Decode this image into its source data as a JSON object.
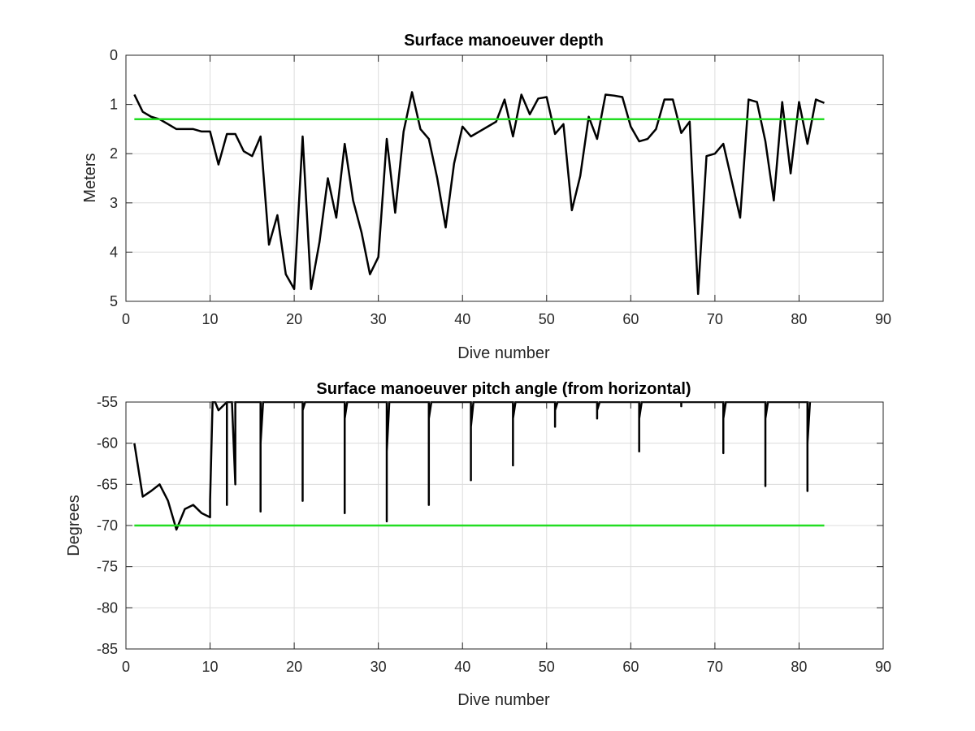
{
  "chart_data": [
    {
      "type": "line",
      "title": "Surface manoeuver depth",
      "xlabel": "Dive number",
      "ylabel": "Meters",
      "xlim": [
        0,
        90
      ],
      "ylim": [
        0,
        5
      ],
      "y_reversed": true,
      "grid": true,
      "xticks": [
        0,
        10,
        20,
        30,
        40,
        50,
        60,
        70,
        80,
        90
      ],
      "yticks": [
        0,
        1,
        2,
        3,
        4,
        5
      ],
      "series": [
        {
          "color": "#000000",
          "x": [
            1,
            2,
            3,
            4,
            5,
            6,
            7,
            8,
            9,
            10,
            11,
            12,
            13,
            14,
            15,
            16,
            17,
            18,
            19,
            20,
            21,
            22,
            23,
            24,
            25,
            26,
            27,
            28,
            29,
            30,
            31,
            32,
            33,
            34,
            35,
            36,
            37,
            38,
            39,
            40,
            41,
            42,
            43,
            44,
            45,
            46,
            47,
            48,
            49,
            50,
            51,
            52,
            53,
            54,
            55,
            56,
            57,
            58,
            59,
            60,
            61,
            62,
            63,
            64,
            65,
            66,
            67,
            68,
            69,
            70,
            71,
            72,
            73,
            74,
            75,
            76,
            77,
            78,
            79,
            80,
            81,
            82,
            83
          ],
          "y": [
            0.8,
            1.15,
            1.25,
            1.3,
            1.4,
            1.5,
            1.5,
            1.5,
            1.55,
            1.55,
            2.22,
            1.6,
            1.6,
            1.95,
            2.05,
            1.65,
            3.85,
            3.25,
            4.45,
            4.75,
            1.65,
            4.75,
            3.8,
            2.5,
            3.3,
            1.8,
            2.95,
            3.6,
            4.45,
            4.1,
            1.7,
            3.2,
            1.55,
            0.75,
            1.5,
            1.7,
            2.5,
            3.5,
            2.2,
            1.45,
            1.65,
            1.55,
            1.45,
            1.35,
            0.9,
            1.65,
            0.8,
            1.2,
            0.88,
            0.85,
            1.6,
            1.4,
            3.15,
            2.45,
            1.25,
            1.7,
            0.8,
            0.82,
            0.85,
            1.45,
            1.75,
            1.7,
            1.5,
            0.9,
            0.9,
            1.58,
            1.35,
            4.85,
            2.05,
            2.0,
            1.8,
            2.55,
            3.3,
            0.9,
            0.95,
            1.75,
            2.95,
            0.95,
            2.4,
            0.95,
            1.8,
            0.9,
            0.97
          ]
        },
        {
          "color": "#22dd22",
          "x": [
            1,
            83
          ],
          "y": [
            1.3,
            1.3
          ]
        }
      ]
    },
    {
      "type": "line",
      "title": "Surface manoeuver pitch angle (from horizontal)",
      "xlabel": "Dive number",
      "ylabel": "Degrees",
      "xlim": [
        0,
        90
      ],
      "ylim": [
        -85,
        -55
      ],
      "grid": true,
      "xticks": [
        0,
        10,
        20,
        30,
        40,
        50,
        60,
        70,
        80,
        90
      ],
      "yticks": [
        -55,
        -60,
        -65,
        -70,
        -75,
        -80,
        -85
      ],
      "series": [
        {
          "color": "#000000",
          "x": [
            1,
            2,
            3,
            4,
            5,
            6,
            7,
            8,
            9,
            10,
            10,
            10.3,
            10.6,
            11,
            12,
            12,
            12,
            12.3,
            12.6,
            13,
            13,
            13,
            15.8,
            16,
            16,
            16,
            16.3,
            20.8,
            21,
            21,
            21,
            21.3,
            25.8,
            26,
            26,
            26,
            26.3,
            30.8,
            31,
            31,
            31,
            31.3,
            35.8,
            36,
            36,
            36,
            36.3,
            40.8,
            41,
            41,
            41,
            41.3,
            45.8,
            46,
            46,
            46,
            46.3,
            50.8,
            51,
            51,
            51,
            51.3,
            55.8,
            56,
            56,
            56,
            56.3,
            60.8,
            61,
            61,
            61,
            61.3,
            65.8,
            66,
            66,
            66,
            66.3,
            70.8,
            71,
            71,
            71,
            71.3,
            75.8,
            76,
            76,
            76,
            76.3,
            80.8,
            81,
            81,
            81,
            81.3
          ],
          "y": [
            -60,
            -66.5,
            -65.8,
            -65,
            -67,
            -70.5,
            -68,
            -67.5,
            -68.5,
            -69,
            -67,
            -55,
            -55,
            -56,
            -55,
            -67.5,
            -55,
            -55,
            -55,
            -65,
            -55,
            -55,
            -55,
            -55,
            -68.3,
            -60,
            -55,
            -55,
            -55,
            -67,
            -56,
            -55,
            -55,
            -55,
            -68.5,
            -57,
            -55,
            -55,
            -55,
            -69.5,
            -61,
            -55,
            -55,
            -55,
            -67.5,
            -57,
            -55,
            -55,
            -55,
            -64.5,
            -58,
            -55,
            -55,
            -55,
            -62.7,
            -57,
            -55,
            -55,
            -55,
            -58,
            -56,
            -55,
            -55,
            -55,
            -57,
            -56,
            -55,
            -55,
            -55,
            -61,
            -57,
            -55,
            -55,
            -55,
            -55.5,
            -55,
            -55,
            -55,
            -55,
            -61.2,
            -57,
            -55,
            -55,
            -55,
            -65.2,
            -57,
            -55,
            -55,
            -55,
            -65.8,
            -60,
            -55
          ]
        },
        {
          "color": "#22dd22",
          "x": [
            1,
            83
          ],
          "y": [
            -70,
            -70
          ]
        }
      ]
    }
  ]
}
